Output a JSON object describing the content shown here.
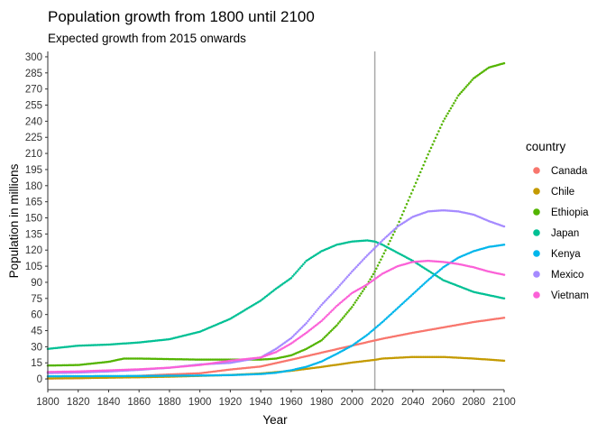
{
  "chart_data": {
    "type": "scatter",
    "title": "Population growth from 1800 until 2100",
    "subtitle": "Expected growth from 2015 onwards",
    "xlabel": "Year",
    "ylabel": "Population in millions",
    "xlim": [
      1800,
      2100
    ],
    "ylim": [
      -10,
      305
    ],
    "x_ticks": [
      1800,
      1820,
      1840,
      1860,
      1880,
      1900,
      1920,
      1940,
      1960,
      1980,
      2000,
      2020,
      2040,
      2060,
      2080,
      2100
    ],
    "y_ticks": [
      0,
      15,
      30,
      45,
      60,
      75,
      90,
      105,
      120,
      135,
      150,
      165,
      180,
      195,
      210,
      225,
      240,
      255,
      270,
      285,
      300
    ],
    "grid": false,
    "vline": 2015,
    "legend": {
      "title": "country",
      "position": "right"
    },
    "series": [
      {
        "name": "Canada",
        "color": "#F8766D",
        "x": [
          1800,
          1820,
          1840,
          1860,
          1880,
          1900,
          1920,
          1940,
          1960,
          1980,
          2000,
          2015,
          2020,
          2040,
          2060,
          2080,
          2100
        ],
        "y": [
          0.4,
          0.7,
          1.4,
          2.9,
          4.2,
          5.3,
          8.8,
          11.6,
          17.9,
          24.5,
          31.0,
          35.9,
          37.5,
          43.0,
          48.0,
          53.0,
          57.0
        ]
      },
      {
        "name": "Chile",
        "color": "#C49A00",
        "x": [
          1800,
          1820,
          1840,
          1860,
          1880,
          1900,
          1920,
          1940,
          1960,
          1980,
          2000,
          2015,
          2020,
          2040,
          2060,
          2080,
          2100
        ],
        "y": [
          0.6,
          0.8,
          1.2,
          1.6,
          2.1,
          2.9,
          3.7,
          5.1,
          7.6,
          11.2,
          15.3,
          17.8,
          19.0,
          20.5,
          20.5,
          19.0,
          17.0
        ]
      },
      {
        "name": "Ethiopia",
        "color": "#53B400",
        "x": [
          1800,
          1820,
          1840,
          1850,
          1860,
          1880,
          1900,
          1920,
          1940,
          1950,
          1960,
          1970,
          1980,
          1990,
          2000,
          2010,
          2015,
          2020,
          2030,
          2040,
          2050,
          2060,
          2070,
          2080,
          2090,
          2100
        ],
        "y": [
          12.5,
          13.0,
          16.0,
          19.0,
          19.0,
          18.5,
          18.0,
          18.0,
          18.0,
          19.0,
          22.0,
          28.0,
          36.0,
          50.0,
          67.0,
          88.0,
          100.0,
          114.0,
          143.0,
          176.0,
          209.0,
          240.0,
          264.0,
          280.0,
          290.0,
          294.0
        ]
      },
      {
        "name": "Japan",
        "color": "#00C094",
        "x": [
          1800,
          1820,
          1840,
          1860,
          1880,
          1900,
          1920,
          1940,
          1950,
          1960,
          1970,
          1980,
          1990,
          2000,
          2010,
          2015,
          2020,
          2040,
          2060,
          2080,
          2100
        ],
        "y": [
          28.0,
          31.0,
          32.0,
          34.0,
          37.0,
          44.0,
          56.0,
          73.0,
          84.0,
          94.0,
          110.0,
          119.0,
          125.0,
          128.0,
          129.0,
          128.0,
          125.0,
          110.0,
          92.0,
          81.0,
          75.0
        ]
      },
      {
        "name": "Kenya",
        "color": "#00B6EB",
        "x": [
          1800,
          1820,
          1840,
          1860,
          1880,
          1900,
          1920,
          1940,
          1950,
          1960,
          1970,
          1980,
          1990,
          2000,
          2010,
          2015,
          2020,
          2030,
          2040,
          2050,
          2060,
          2070,
          2080,
          2090,
          2100
        ],
        "y": [
          2.5,
          2.6,
          2.7,
          2.8,
          3.0,
          3.2,
          3.6,
          4.6,
          5.8,
          8.1,
          11.3,
          16.3,
          23.4,
          31.0,
          41.0,
          47.0,
          53.0,
          66.0,
          79.0,
          92.0,
          104.0,
          113.0,
          119.0,
          123.0,
          125.0
        ]
      },
      {
        "name": "Mexico",
        "color": "#A58AFF",
        "x": [
          1800,
          1820,
          1840,
          1860,
          1880,
          1900,
          1920,
          1940,
          1950,
          1960,
          1970,
          1980,
          1990,
          2000,
          2010,
          2015,
          2020,
          2030,
          2040,
          2050,
          2060,
          2070,
          2080,
          2090,
          2100
        ],
        "y": [
          5.5,
          6.0,
          7.0,
          8.5,
          10.5,
          13.5,
          15.0,
          20.0,
          28.0,
          38.0,
          52.0,
          69.0,
          84.0,
          100.0,
          115.0,
          122.0,
          129.0,
          142.0,
          151.0,
          156.0,
          157.0,
          156.0,
          153.0,
          147.0,
          142.0
        ]
      },
      {
        "name": "Vietnam",
        "color": "#FB61D7",
        "x": [
          1800,
          1820,
          1840,
          1860,
          1880,
          1900,
          1920,
          1940,
          1950,
          1960,
          1970,
          1980,
          1990,
          2000,
          2010,
          2015,
          2020,
          2030,
          2040,
          2050,
          2060,
          2070,
          2080,
          2090,
          2100
        ],
        "y": [
          6.5,
          7.0,
          8.0,
          9.0,
          10.5,
          13.0,
          17.0,
          20.0,
          25.0,
          33.0,
          43.0,
          54.0,
          68.0,
          80.0,
          88.0,
          93.0,
          98.0,
          105.0,
          109.0,
          110.0,
          109.0,
          107.0,
          104.0,
          100.0,
          97.0
        ]
      }
    ]
  }
}
